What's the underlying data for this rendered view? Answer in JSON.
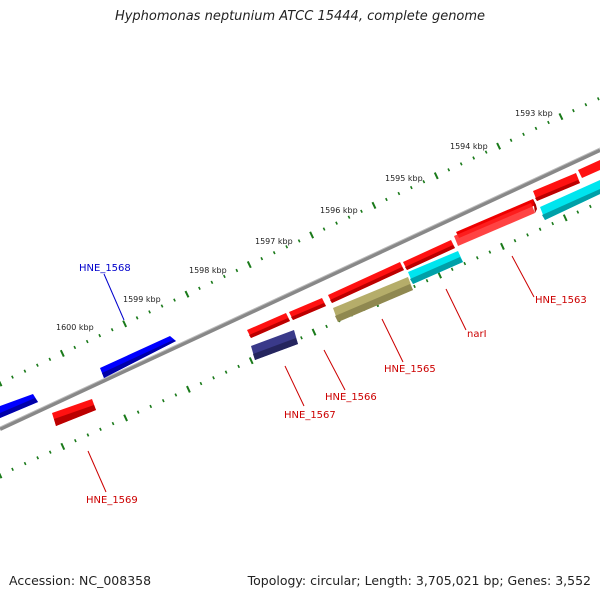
{
  "title": "Hyphomonas neptunium ATCC 15444, complete genome",
  "footer": {
    "accession": "Accession: NC_008358",
    "summary": "Topology: circular; Length: 3,705,021 bp; Genes: 3,552"
  },
  "scale_labels": [
    "1593 kbp",
    "1594 kbp",
    "1595 kbp",
    "1596 kbp",
    "1597 kbp",
    "1598 kbp",
    "1599 kbp",
    "1600 kbp"
  ],
  "gene_labels": [
    {
      "text": "HNE_1568",
      "color": "#0000cc"
    },
    {
      "text": "HNE_1563",
      "color": "#cc0000"
    },
    {
      "text": "narI",
      "color": "#cc0000"
    },
    {
      "text": "HNE_1565",
      "color": "#cc0000"
    },
    {
      "text": "HNE_1566",
      "color": "#cc0000"
    },
    {
      "text": "HNE_1567",
      "color": "#cc0000"
    },
    {
      "text": "HNE_1569",
      "color": "#cc0000"
    }
  ],
  "colors": {
    "backbone": "#888888",
    "tick": "#1a7a1a",
    "forward_gene": "#ff0000",
    "reverse_gene_red": "#ff0000",
    "cyan_gene": "#00e5ee",
    "olive_gene": "#b5ad6a",
    "navy_gene": "#3a3a8a",
    "blue_gene": "#0000ff"
  }
}
